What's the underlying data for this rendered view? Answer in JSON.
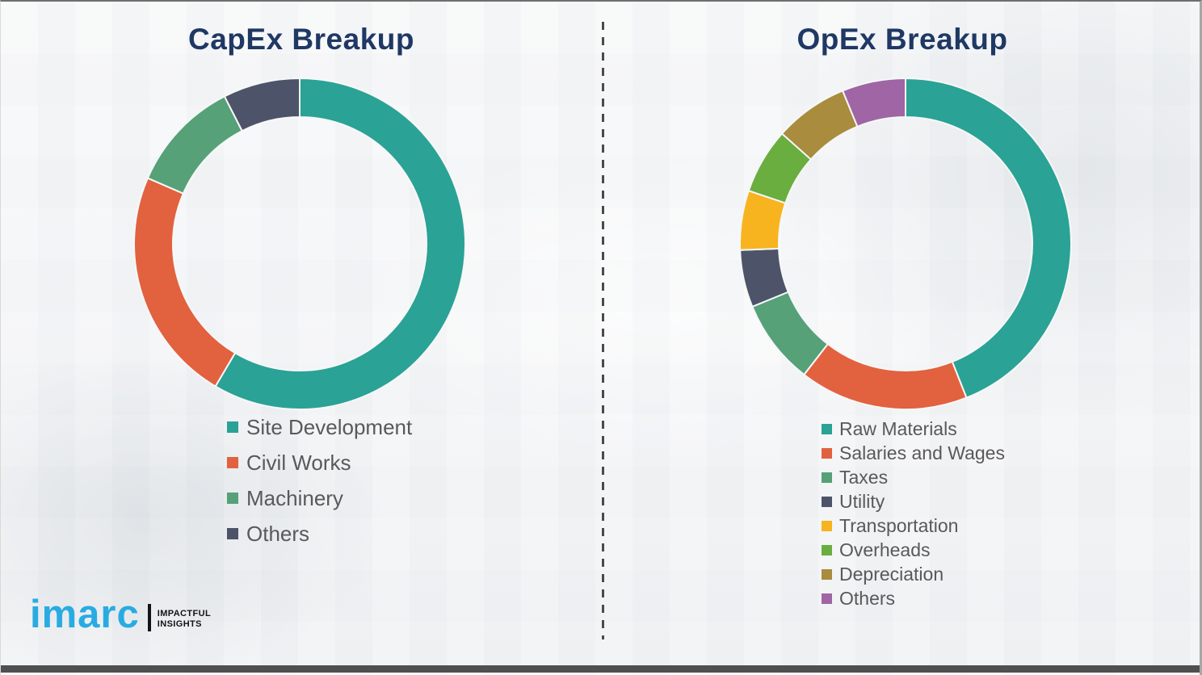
{
  "page": {
    "background_color": "#f4f5f6",
    "title_color": "#1f3864",
    "legend_text_color": "#595959",
    "divider_style": "vertical-dashed-gray"
  },
  "chart_data": [
    {
      "type": "pie",
      "subtype": "donut",
      "title": "CapEx Breakup",
      "labels": [
        "Site Development",
        "Civil Works",
        "Machinery",
        "Others"
      ],
      "values": [
        58.5,
        23.0,
        11.0,
        7.5
      ],
      "values_note": "percent, estimated from arc angles (no data labels shown)",
      "colors": [
        "#2aa295",
        "#e2613e",
        "#56a178",
        "#4d5368"
      ],
      "start_angle_deg": 0,
      "direction": "clockwise",
      "legend_position": "below-chart-left"
    },
    {
      "type": "pie",
      "subtype": "donut",
      "title": "OpEx Breakup",
      "labels": [
        "Raw Materials",
        "Salaries and Wages",
        "Taxes",
        "Utility",
        "Transportation",
        "Overheads",
        "Depreciation",
        "Others"
      ],
      "values": [
        44.0,
        16.5,
        8.3,
        5.6,
        5.8,
        6.4,
        7.2,
        6.2
      ],
      "values_note": "percent, estimated from arc angles (no data labels shown)",
      "colors": [
        "#2aa295",
        "#e2613e",
        "#56a178",
        "#4d5368",
        "#f7b41f",
        "#6aae40",
        "#a98c3e",
        "#9f65a5"
      ],
      "start_angle_deg": 0,
      "direction": "clockwise",
      "legend_position": "below-chart-left"
    }
  ],
  "logo": {
    "brand": "imarc",
    "brand_color": "#29abe2",
    "tagline_line1": "IMPACTFUL",
    "tagline_line2": "INSIGHTS"
  }
}
